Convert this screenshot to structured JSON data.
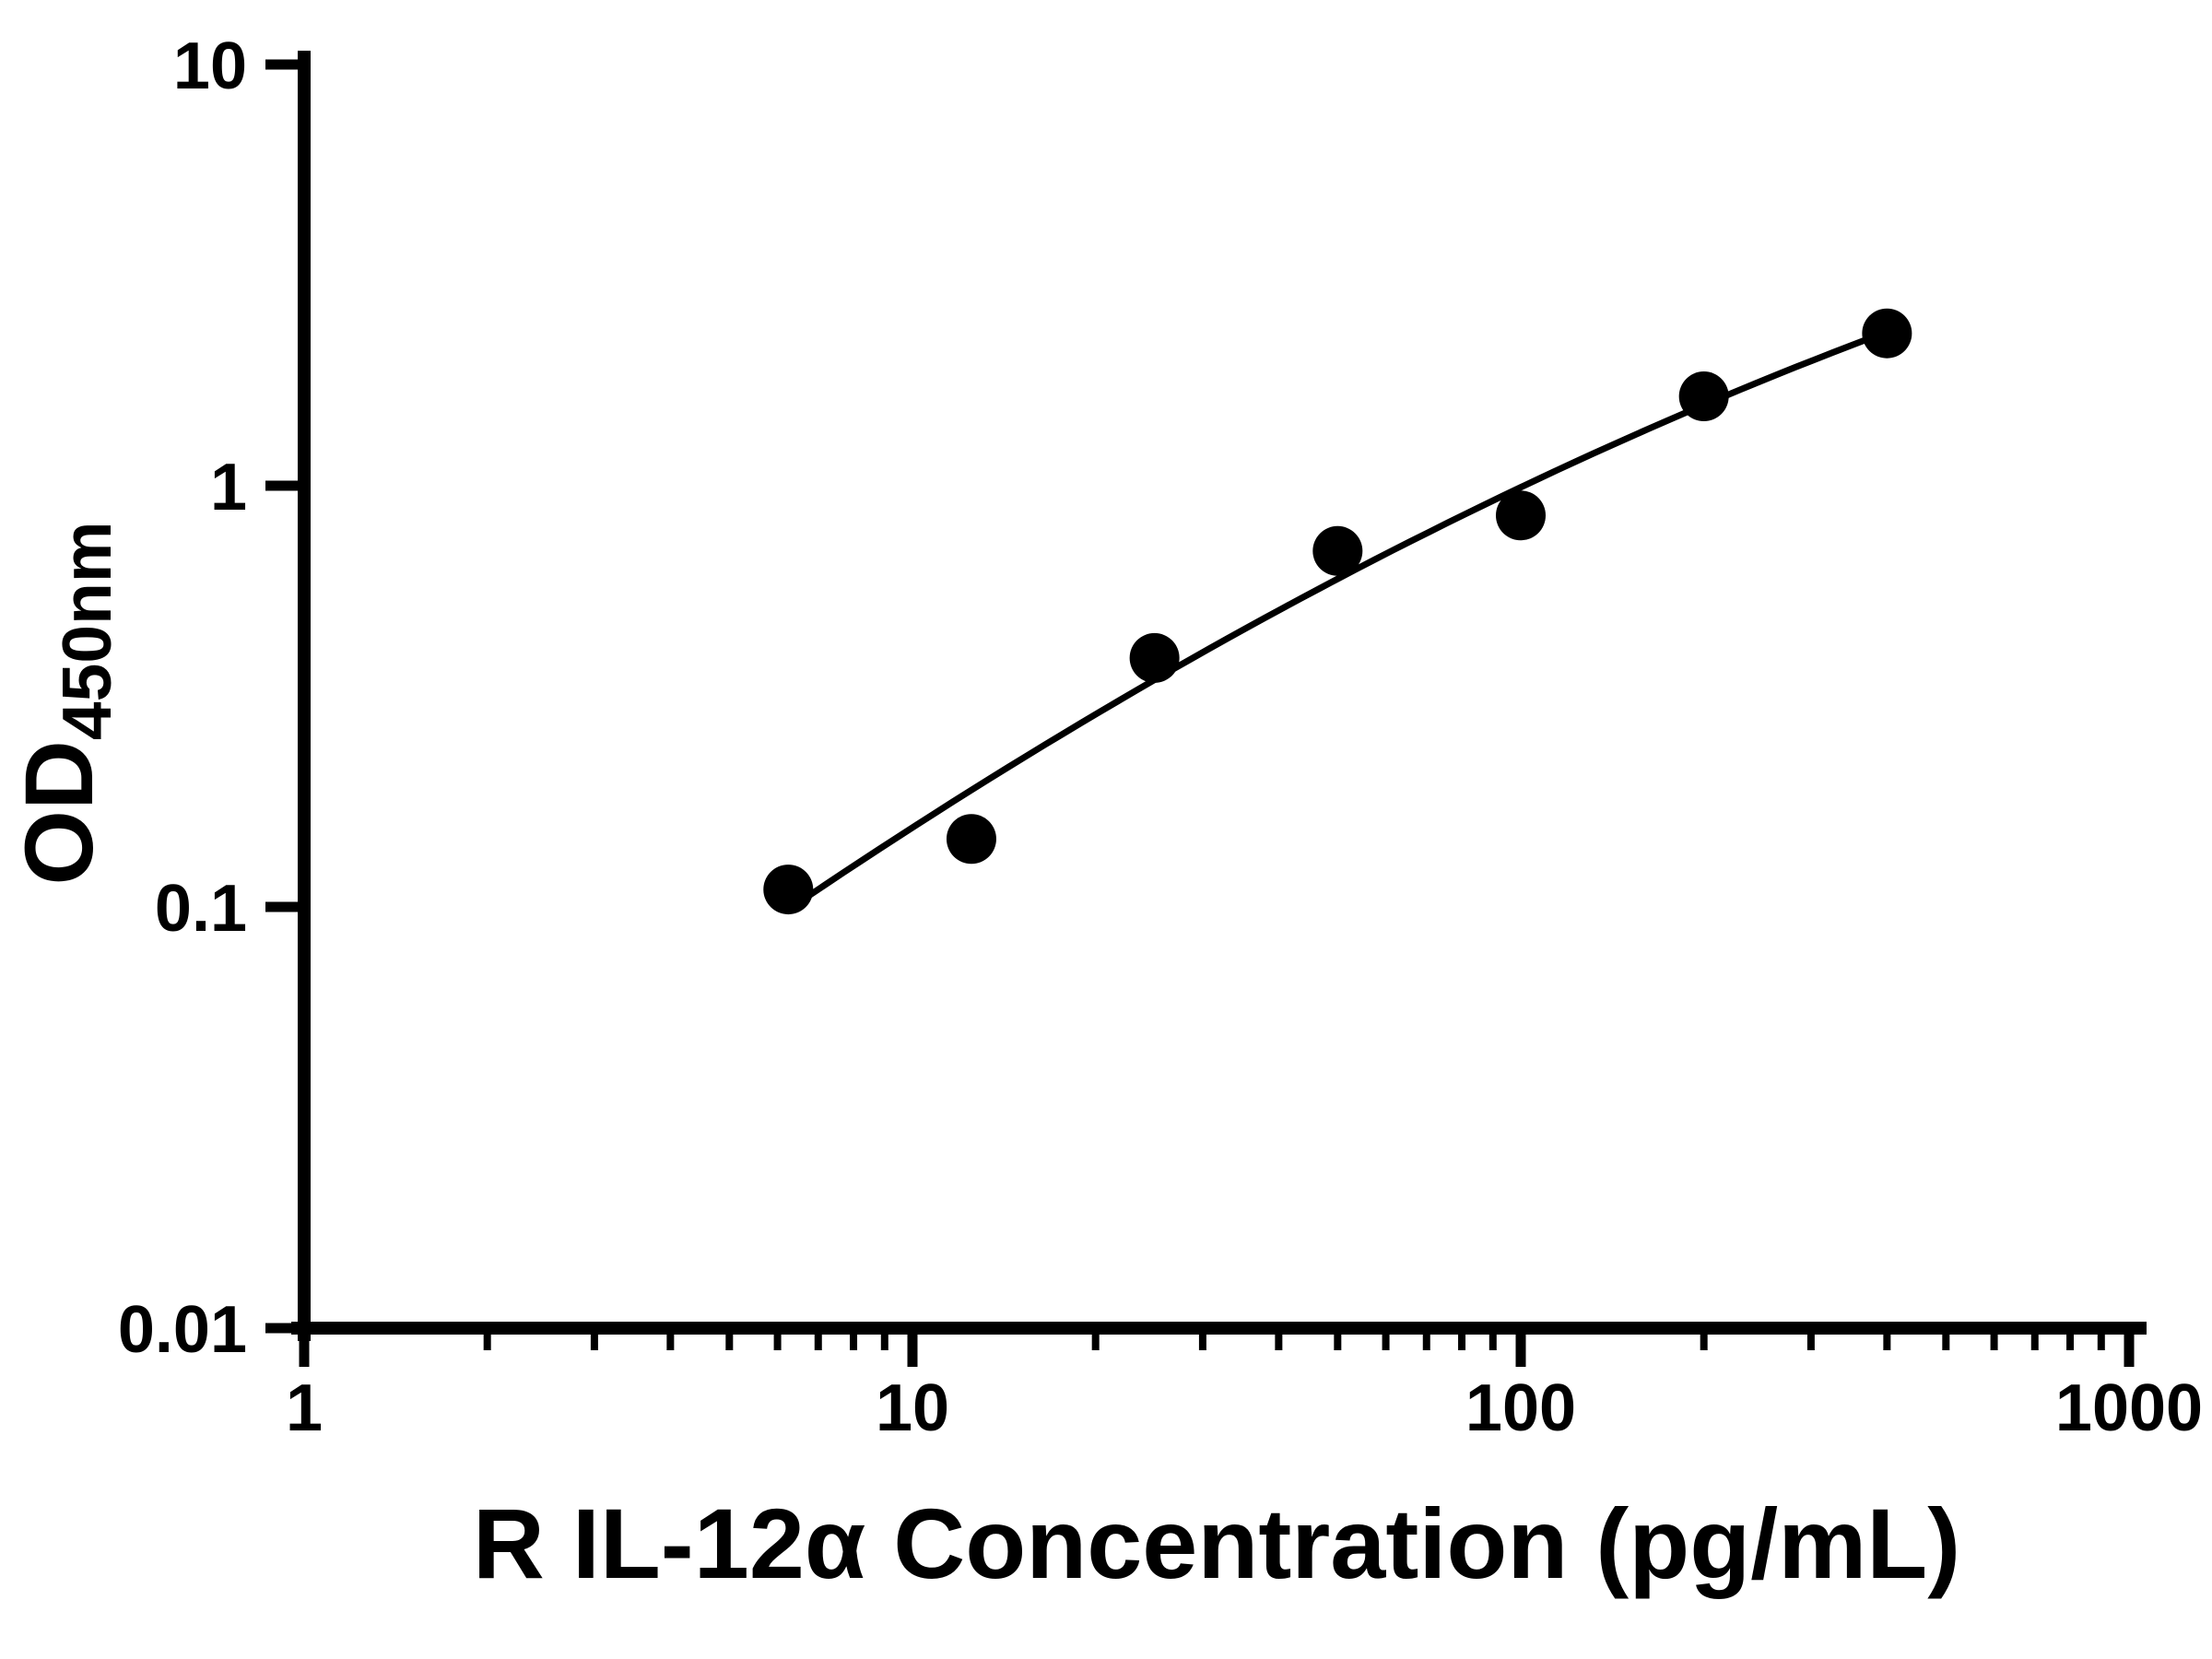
{
  "chart_data": {
    "type": "scatter",
    "title": "",
    "xlabel": "R IL-12α Concentration (pg/mL)",
    "ylabel_main": "OD",
    "ylabel_sub": "450nm",
    "xscale": "log",
    "yscale": "log",
    "xlim": [
      1,
      1000
    ],
    "ylim": [
      0.01,
      10
    ],
    "x": [
      6.25,
      12.5,
      25,
      50,
      100,
      200,
      400
    ],
    "y": [
      0.11,
      0.145,
      0.39,
      0.7,
      0.85,
      1.63,
      2.3
    ],
    "fit": "smooth log-log curve through standards",
    "x_ticks": [
      1,
      10,
      100,
      1000
    ],
    "x_tick_labels": [
      "1",
      "10",
      "100",
      "1000"
    ],
    "x_minor_ticks": [
      2,
      3,
      4,
      5,
      6,
      7,
      8,
      9,
      20,
      30,
      40,
      50,
      60,
      70,
      80,
      90,
      200,
      300,
      400,
      500,
      600,
      700,
      800,
      900
    ],
    "y_ticks": [
      10,
      1,
      0.1,
      0.01
    ],
    "y_tick_labels": [
      "10",
      "1",
      "0.1",
      "0.01"
    ],
    "marker_color": "#000000",
    "line_color": "#000000",
    "grid": "off",
    "legend": "none"
  }
}
